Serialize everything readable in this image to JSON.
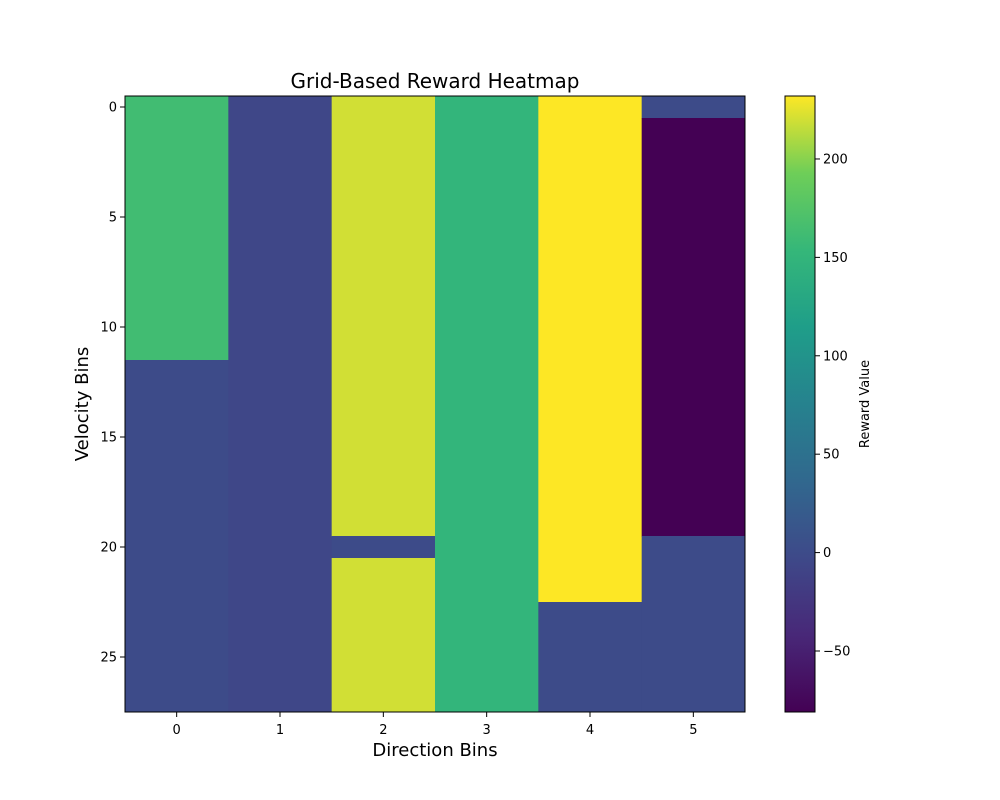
{
  "chart_data": {
    "type": "heatmap",
    "title": "Grid-Based Reward Heatmap",
    "xlabel": "Direction Bins",
    "ylabel": "Velocity Bins",
    "colorbar_label": "Reward Value",
    "colormap": "viridis",
    "vmin": -81,
    "vmax": 232,
    "x_ticks": [
      "0",
      "1",
      "2",
      "3",
      "4",
      "5"
    ],
    "y_ticks": [
      "0",
      "5",
      "10",
      "15",
      "20",
      "25"
    ],
    "colorbar_ticks": [
      "200",
      "150",
      "100",
      "50",
      "0",
      "−50"
    ],
    "n_rows": 28,
    "n_cols": 6,
    "columns": [
      {
        "col": 0,
        "segments": [
          {
            "rows": [
              0,
              11
            ],
            "value": 162
          },
          {
            "rows": [
              12,
              27
            ],
            "value": 0
          }
        ]
      },
      {
        "col": 1,
        "segments": [
          {
            "rows": [
              0,
              27
            ],
            "value": -5
          }
        ]
      },
      {
        "col": 2,
        "segments": [
          {
            "rows": [
              0,
              19
            ],
            "value": 220
          },
          {
            "rows": [
              20,
              20
            ],
            "value": 0
          },
          {
            "rows": [
              21,
              27
            ],
            "value": 220
          }
        ]
      },
      {
        "col": 3,
        "segments": [
          {
            "rows": [
              0,
              27
            ],
            "value": 150
          }
        ]
      },
      {
        "col": 4,
        "segments": [
          {
            "rows": [
              0,
              22
            ],
            "value": 232
          },
          {
            "rows": [
              23,
              27
            ],
            "value": 0
          }
        ]
      },
      {
        "col": 5,
        "segments": [
          {
            "rows": [
              0,
              0
            ],
            "value": 0
          },
          {
            "rows": [
              1,
              19
            ],
            "value": -81
          },
          {
            "rows": [
              20,
              27
            ],
            "value": 0
          }
        ]
      }
    ]
  }
}
